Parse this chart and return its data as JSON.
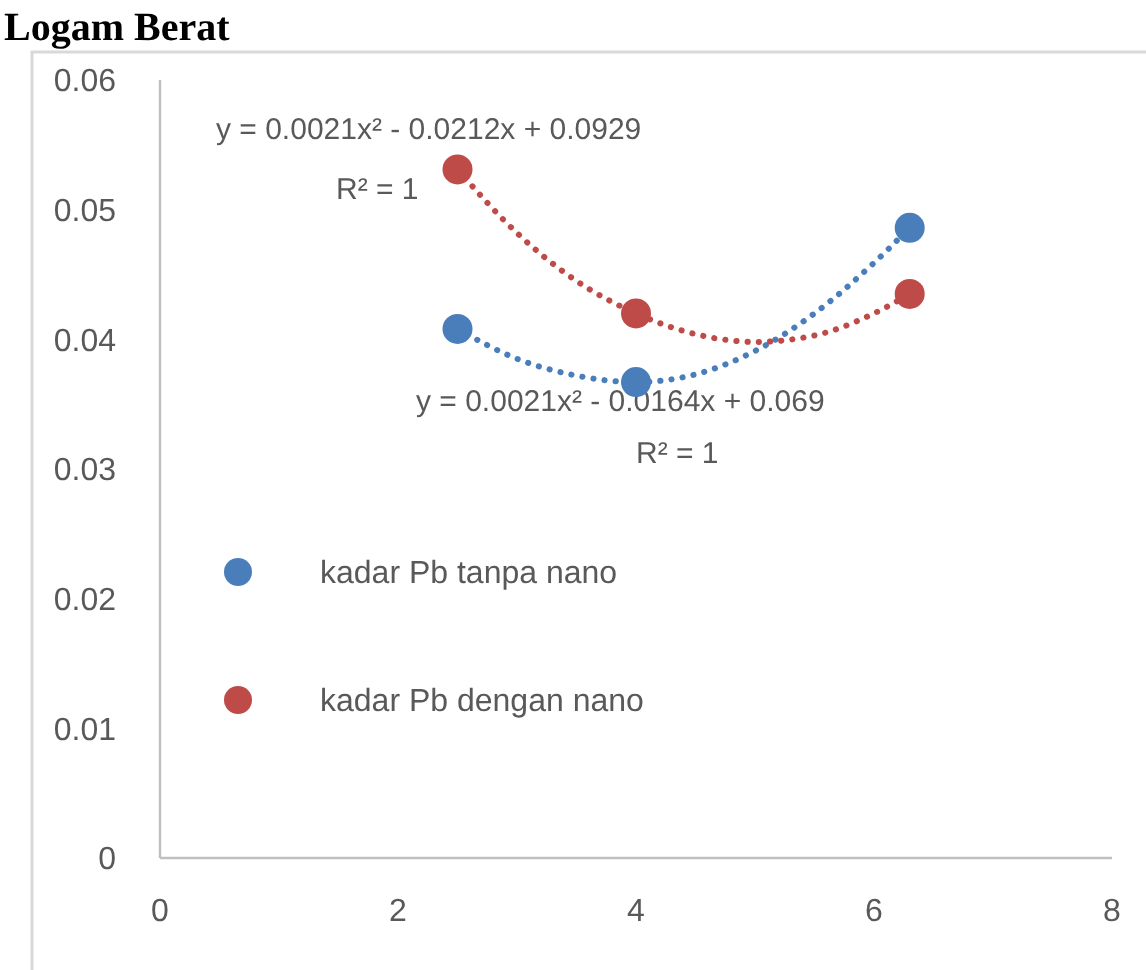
{
  "chart_data": {
    "type": "scatter",
    "title": "Logam Berat",
    "xlim": [
      0,
      8
    ],
    "xticks": [
      0,
      2,
      4,
      6,
      8
    ],
    "ylim": [
      0,
      0.06
    ],
    "yticks": [
      0,
      0.01,
      0.02,
      0.03,
      0.04,
      0.05,
      0.06
    ],
    "grid": false,
    "legend": "left",
    "marker": "circle",
    "series": [
      {
        "name": "kadar Pb tanpa nano",
        "color": "#4a7ebb",
        "x": [
          2.5,
          4,
          6.3
        ],
        "values": [
          0.0408,
          0.0367,
          0.0486
        ]
      },
      {
        "name": "kadar Pb dengan nano",
        "color": "#be4b48",
        "x": [
          2.5,
          4,
          6.3
        ],
        "values": [
          0.0531,
          0.042,
          0.0435
        ]
      },
      {
        "type": "line",
        "color": "#4a7ebb",
        "line_style": "dotted",
        "marker": "none",
        "x": [
          2.5,
          3,
          3.5,
          4,
          4.5,
          5,
          5.5,
          6,
          6.3
        ],
        "values": [
          0.0408,
          0.0385,
          0.0372,
          0.0367,
          0.0373,
          0.0391,
          0.042,
          0.0459,
          0.0486
        ]
      },
      {
        "type": "line",
        "color": "#be4b48",
        "line_style": "dotted",
        "marker": "none",
        "x": [
          2.5,
          3,
          3.5,
          4,
          4.5,
          5,
          5.5,
          6,
          6.3
        ],
        "values": [
          0.0531,
          0.0482,
          0.0445,
          0.042,
          0.0404,
          0.0398,
          0.0403,
          0.042,
          0.0435
        ]
      }
    ],
    "annotations": [
      "y = 0.0021x² - 0.0212x + 0.0929",
      "R² = 1",
      "y = 0.0021x² - 0.0164x + 0.069",
      "R² = 1"
    ]
  }
}
